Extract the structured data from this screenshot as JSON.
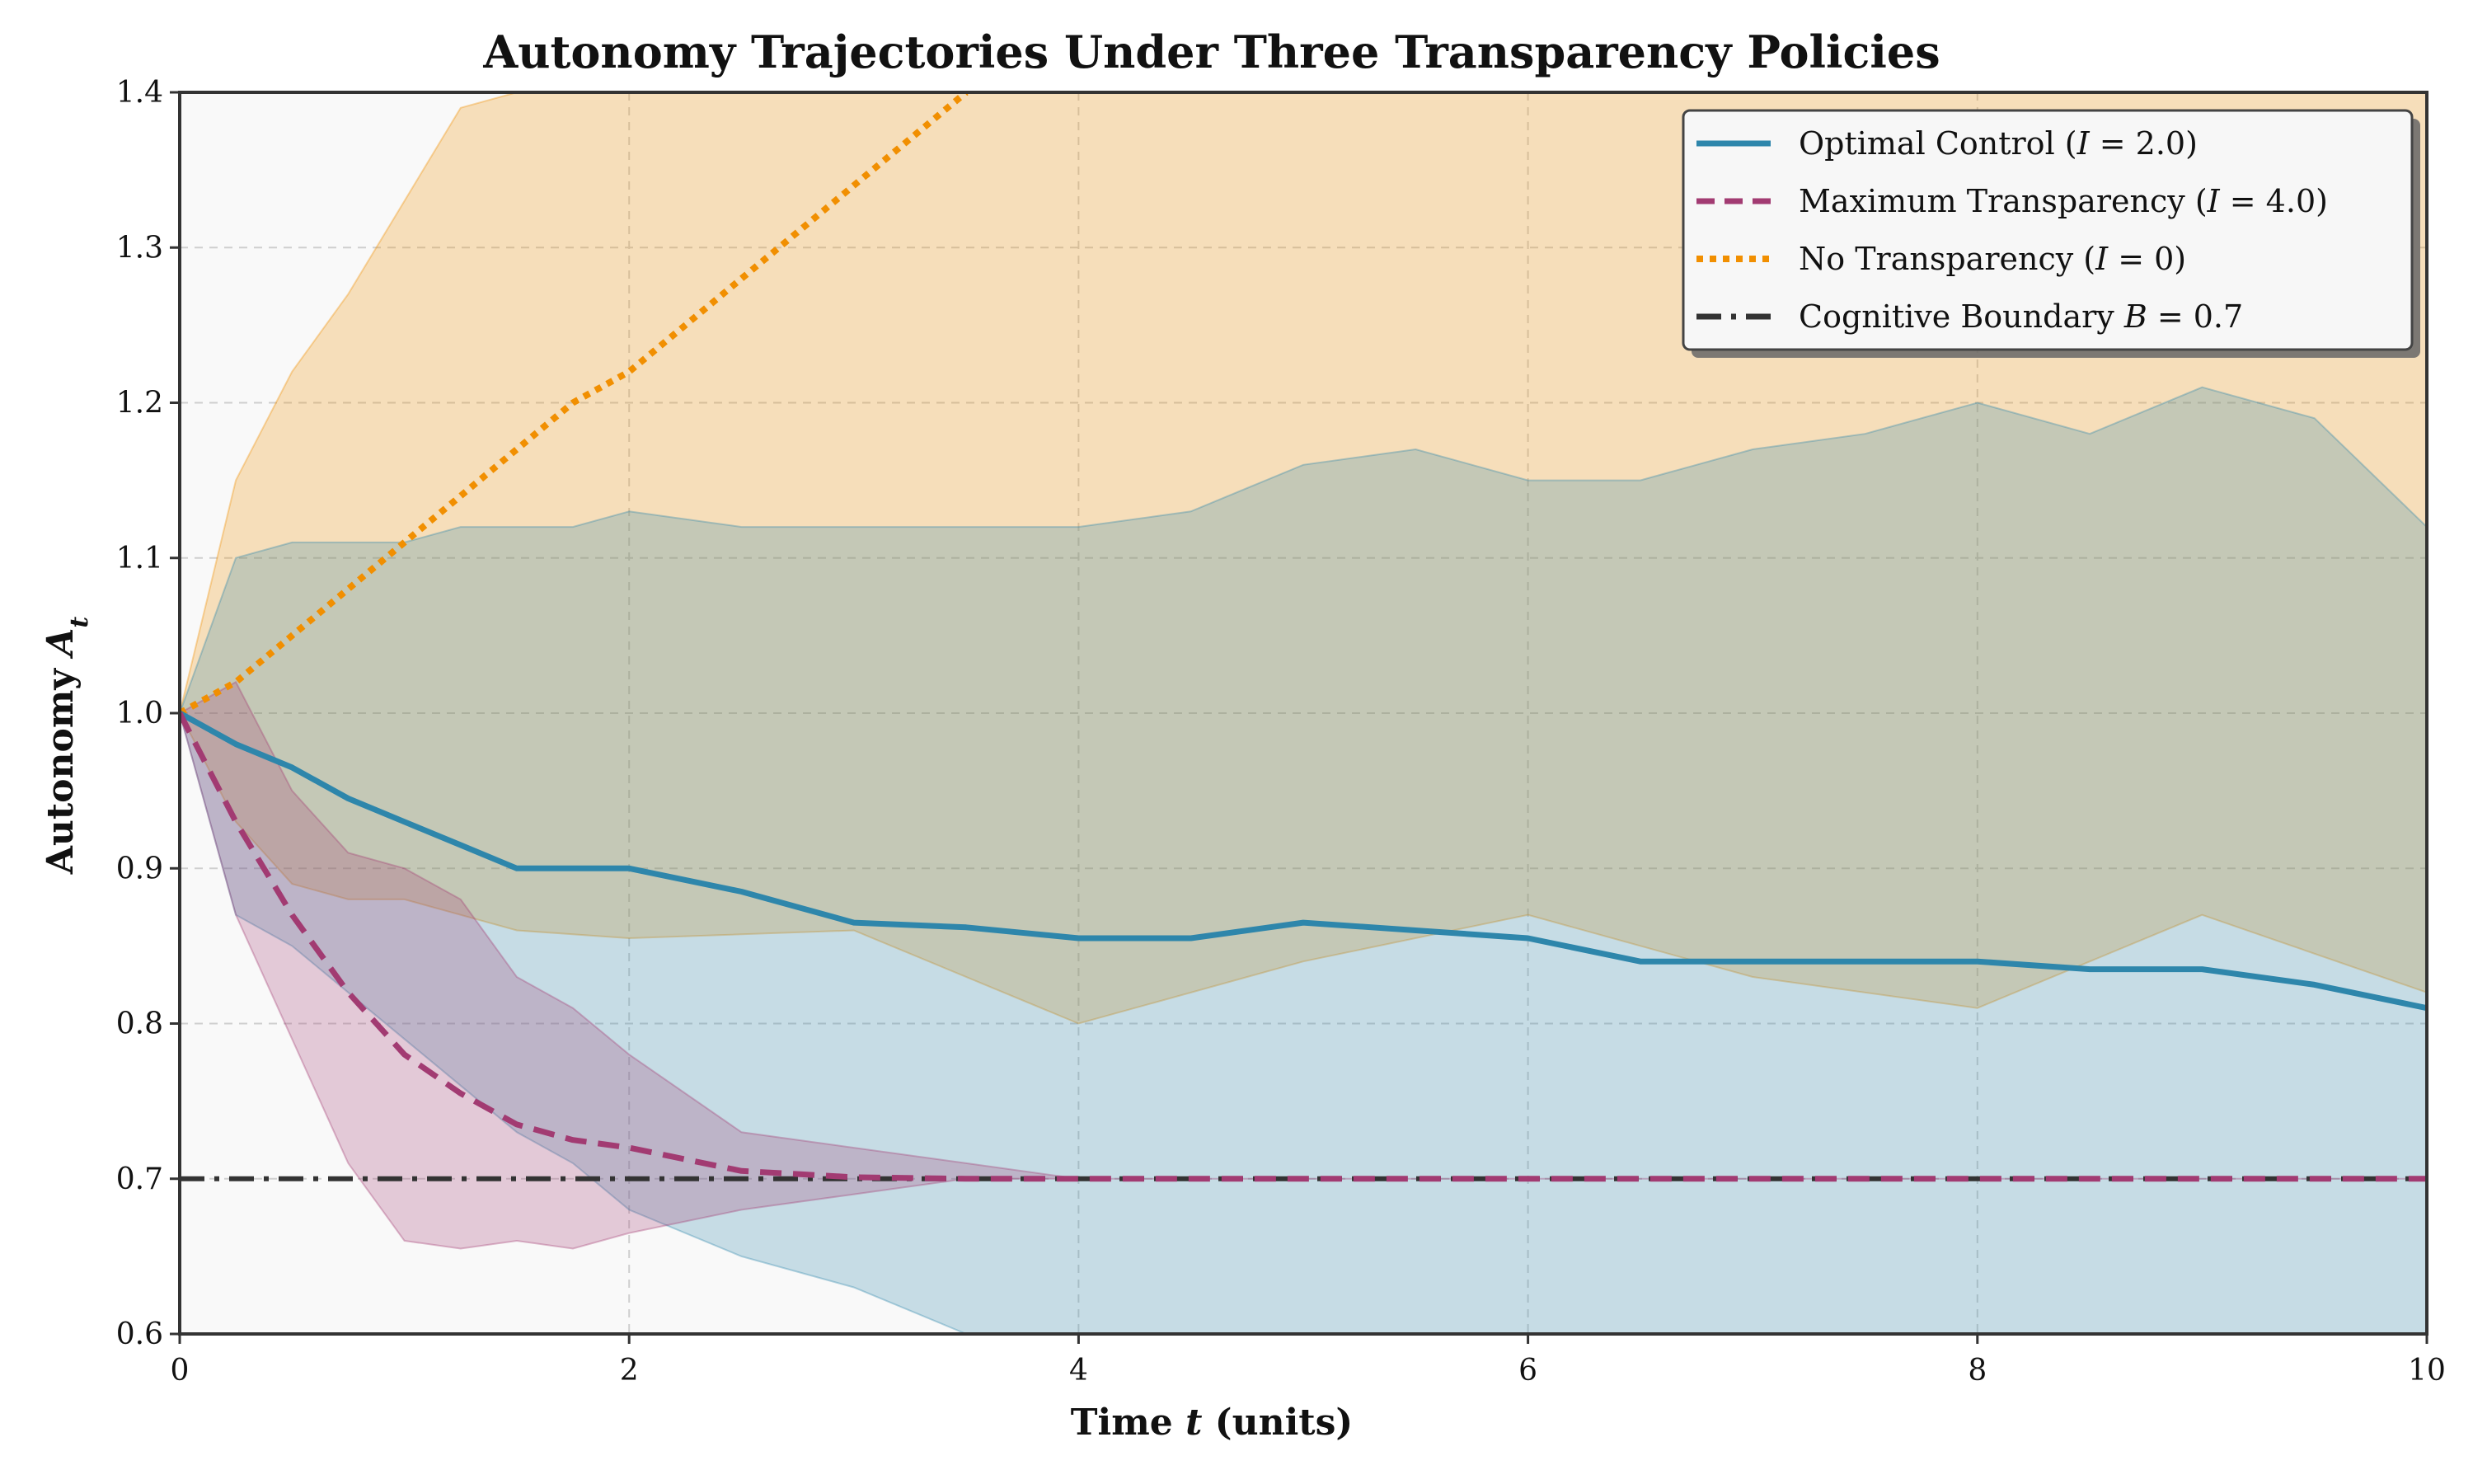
{
  "chart_data": {
    "type": "line",
    "title": "Autonomy Trajectories Under Three Transparency Policies",
    "xlabel": {
      "main": "Time",
      "italic": "t",
      "tail": "(units)"
    },
    "ylabel": {
      "main": "Autonomy",
      "italic": "A",
      "sub": "t"
    },
    "xlim": [
      0,
      10
    ],
    "ylim": [
      0.6,
      1.4
    ],
    "grid": true,
    "legend_position": "top-right",
    "xticks": [
      0,
      2,
      4,
      6,
      8,
      10
    ],
    "xtick_labels": [
      "0",
      "2",
      "4",
      "6",
      "8",
      "10"
    ],
    "yticks": [
      0.6,
      0.7,
      0.8,
      0.9,
      1.0,
      1.1,
      1.2,
      1.3,
      1.4
    ],
    "ytick_labels": [
      "0.6",
      "0.7",
      "0.8",
      "0.9",
      "1.0",
      "1.1",
      "1.2",
      "1.3",
      "1.4"
    ],
    "colors": {
      "optimal": "#2E86AB",
      "maximum": "#A23B72",
      "none": "#F18F01",
      "boundary": "#333333"
    },
    "series": [
      {
        "name": "Optimal Control",
        "legend": {
          "pre": "Optimal Control (",
          "var": "I",
          "post": " = 2.0)"
        },
        "style": "solid",
        "x": [
          0,
          0.25,
          0.5,
          0.75,
          1.0,
          1.25,
          1.5,
          1.75,
          2.0,
          2.5,
          3.0,
          3.5,
          4.0,
          4.5,
          5.0,
          5.5,
          6.0,
          6.5,
          7.0,
          7.5,
          8.0,
          8.5,
          9.0,
          9.5,
          10.0
        ],
        "y": [
          1.0,
          0.98,
          0.965,
          0.945,
          0.93,
          0.915,
          0.9,
          0.9,
          0.9,
          0.885,
          0.865,
          0.862,
          0.855,
          0.855,
          0.865,
          0.86,
          0.855,
          0.84,
          0.84,
          0.84,
          0.84,
          0.835,
          0.835,
          0.825,
          0.81
        ],
        "band_upper": [
          1.0,
          1.1,
          1.11,
          1.11,
          1.11,
          1.12,
          1.12,
          1.12,
          1.13,
          1.12,
          1.12,
          1.12,
          1.12,
          1.13,
          1.16,
          1.17,
          1.15,
          1.15,
          1.17,
          1.18,
          1.2,
          1.18,
          1.21,
          1.19,
          1.12
        ],
        "band_lower": [
          1.0,
          0.87,
          0.85,
          0.82,
          0.79,
          0.76,
          0.73,
          0.71,
          0.68,
          0.65,
          0.63,
          0.6,
          0.6,
          0.6,
          0.6,
          0.6,
          0.6,
          0.6,
          0.6,
          0.6,
          0.6,
          0.6,
          0.6,
          0.6,
          0.6
        ]
      },
      {
        "name": "Maximum Transparency",
        "legend": {
          "pre": "Maximum Transparency (",
          "var": "I",
          "post": " = 4.0)"
        },
        "style": "dashed",
        "x": [
          0,
          0.25,
          0.5,
          0.75,
          1.0,
          1.25,
          1.5,
          1.75,
          2.0,
          2.5,
          3.0,
          3.5,
          4.0,
          5.0,
          6.0,
          7.0,
          8.0,
          9.0,
          10.0
        ],
        "y": [
          1.0,
          0.93,
          0.87,
          0.82,
          0.78,
          0.755,
          0.735,
          0.725,
          0.72,
          0.705,
          0.701,
          0.7,
          0.7,
          0.7,
          0.7,
          0.7,
          0.7,
          0.7,
          0.7
        ],
        "band_upper": [
          1.0,
          1.02,
          0.95,
          0.91,
          0.9,
          0.88,
          0.83,
          0.81,
          0.78,
          0.73,
          0.72,
          0.71,
          0.7,
          0.7,
          0.7,
          0.7,
          0.7,
          0.7,
          0.7
        ],
        "band_lower": [
          1.0,
          0.87,
          0.79,
          0.71,
          0.66,
          0.655,
          0.66,
          0.655,
          0.665,
          0.68,
          0.69,
          0.7,
          0.7,
          0.7,
          0.7,
          0.7,
          0.7,
          0.7,
          0.7
        ]
      },
      {
        "name": "No Transparency",
        "legend": {
          "pre": "No Transparency (",
          "var": "I",
          "post": " = 0)"
        },
        "style": "dotted",
        "x": [
          0,
          0.25,
          0.5,
          0.75,
          1.0,
          1.25,
          1.5,
          1.75,
          2.0,
          2.25,
          2.5,
          2.75,
          3.0,
          3.25,
          3.5
        ],
        "y": [
          1.0,
          1.02,
          1.05,
          1.08,
          1.11,
          1.14,
          1.17,
          1.2,
          1.22,
          1.25,
          1.28,
          1.31,
          1.34,
          1.37,
          1.4
        ],
        "band_upper": [
          1.0,
          1.15,
          1.22,
          1.27,
          1.33,
          1.39,
          1.4,
          1.4,
          1.4,
          1.4,
          1.4,
          1.4,
          1.4,
          1.4,
          1.4,
          1.4
        ],
        "band_x": [
          0,
          0.25,
          0.5,
          0.75,
          1.0,
          1.25,
          1.5,
          2.0,
          3.0,
          4.0,
          5.0,
          6.0,
          7.0,
          8.0,
          9.0,
          10.0
        ],
        "band_lower_full": [
          1.0,
          0.93,
          0.89,
          0.88,
          0.88,
          0.87,
          0.86,
          0.855,
          0.86,
          0.8,
          0.84,
          0.87,
          0.83,
          0.81,
          0.87,
          0.82
        ],
        "band_upper_full": [
          1.0,
          1.15,
          1.22,
          1.27,
          1.33,
          1.39,
          1.4,
          1.4,
          1.4,
          1.4,
          1.4,
          1.4,
          1.4,
          1.4,
          1.4,
          1.4
        ]
      }
    ],
    "reference_line": {
      "name": "Cognitive Boundary",
      "legend": {
        "pre": "Cognitive Boundary ",
        "var": "B",
        "post": " = 0.7"
      },
      "y": 0.7,
      "style": "dashdot"
    }
  }
}
